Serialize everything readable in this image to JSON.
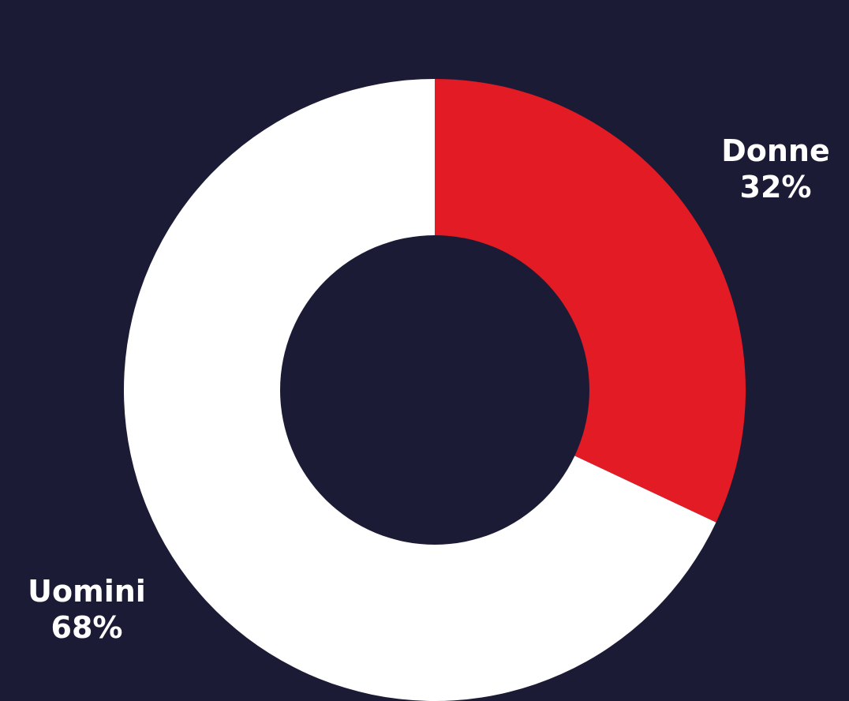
{
  "chart_data": {
    "type": "pie",
    "title": "",
    "categories": [
      "Donne",
      "Uomini"
    ],
    "values": [
      32,
      68
    ],
    "value_labels": [
      "32%",
      "68%"
    ],
    "colors": [
      "#e21b25",
      "#ffffff"
    ],
    "donut": true,
    "start": "top",
    "direction": "clockwise",
    "background_color": "#1c1b36"
  }
}
